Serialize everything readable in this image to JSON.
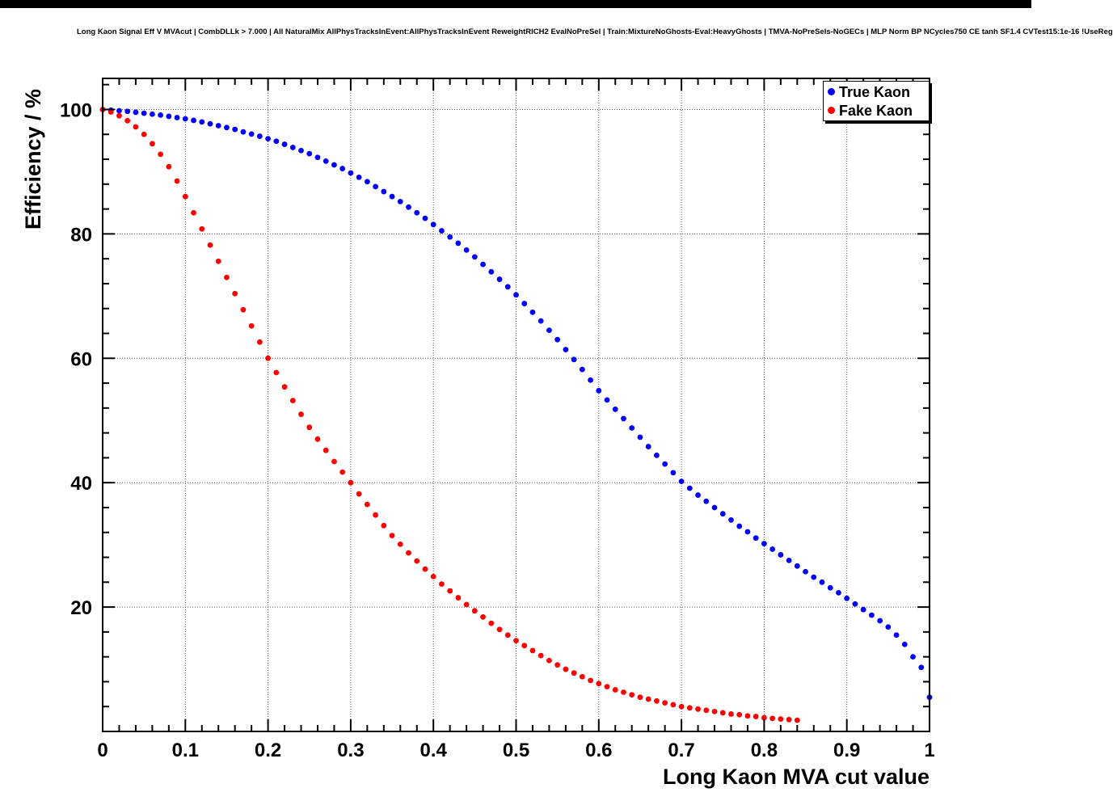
{
  "window": {
    "top_bar_color": "#000000"
  },
  "chart_data": {
    "type": "scatter",
    "title": "Long Kaon Signal Eff V MVAcut | CombDLLk > 7.000 | All NaturalMix AllPhysTracksInEvent:AllPhysTracksInEvent ReweightRICH2 EvalNoPreSel | Train:MixtureNoGhosts-Eval:HeavyGhosts | TMVA-NoPreSels-NoGECs | MLP Norm BP NCycles750 CE tanh SF1.4 CVTest15:1e-16 !UseReg",
    "xlabel": "Long Kaon MVA cut value",
    "ylabel": "Efficiency / %",
    "xlim": [
      0,
      1.0
    ],
    "ylim": [
      0,
      105
    ],
    "grid": true,
    "grid_color": "#555555",
    "x_ticks": [
      0,
      0.1,
      0.2,
      0.3,
      0.4,
      0.5,
      0.6,
      0.7,
      0.8,
      0.9,
      1
    ],
    "x_tick_labels": [
      "0",
      "0.1",
      "0.2",
      "0.3",
      "0.4",
      "0.5",
      "0.6",
      "0.7",
      "0.8",
      "0.9",
      "1"
    ],
    "x_minor_step": 0.02,
    "y_ticks": [
      20,
      40,
      60,
      80,
      100
    ],
    "y_tick_labels": [
      "20",
      "40",
      "60",
      "80",
      "100"
    ],
    "y_minor_step": 4,
    "legend": {
      "position": "top-right",
      "entries": [
        {
          "label": "True Kaon",
          "marker_color": "#0000ff"
        },
        {
          "label": "Fake Kaon",
          "marker_color": "#ff0000"
        }
      ]
    },
    "series": [
      {
        "name": "True Kaon",
        "color": "#0000ff",
        "x_start": 0,
        "x_step": 0.01,
        "values": [
          100.0,
          99.9,
          99.8,
          99.7,
          99.55,
          99.4,
          99.25,
          99.1,
          98.9,
          98.7,
          98.5,
          98.25,
          98.0,
          97.7,
          97.4,
          97.1,
          96.8,
          96.4,
          96.05,
          95.7,
          95.3,
          94.9,
          94.4,
          93.9,
          93.4,
          92.9,
          92.3,
          91.7,
          91.1,
          90.5,
          89.8,
          89.1,
          88.4,
          87.6,
          86.8,
          86.0,
          85.2,
          84.3,
          83.4,
          82.5,
          81.5,
          80.5,
          79.5,
          78.5,
          77.4,
          76.3,
          75.1,
          73.9,
          72.7,
          71.5,
          70.2,
          68.8,
          67.4,
          66.0,
          64.5,
          63.0,
          61.4,
          59.8,
          58.2,
          56.5,
          54.8,
          53.3,
          51.8,
          50.3,
          48.8,
          47.3,
          45.8,
          44.4,
          43.0,
          41.6,
          40.2,
          39.1,
          38.0,
          37.0,
          36.0,
          35.0,
          34.0,
          33.0,
          32.1,
          31.1,
          30.2,
          29.3,
          28.4,
          27.5,
          26.6,
          25.7,
          24.8,
          24.0,
          23.1,
          22.3,
          21.4,
          20.5,
          19.6,
          18.7,
          17.8,
          16.8,
          15.5,
          14.0,
          12.0,
          10.3,
          5.5
        ]
      },
      {
        "name": "Fake Kaon",
        "color": "#ff0000",
        "x_start": 0,
        "x_step": 0.01,
        "values": [
          100.0,
          99.6,
          99.0,
          98.2,
          97.2,
          96.0,
          94.5,
          92.8,
          90.8,
          88.5,
          86.0,
          83.4,
          80.8,
          78.2,
          75.6,
          73.0,
          70.4,
          67.8,
          65.2,
          62.6,
          60.0,
          57.7,
          55.4,
          53.2,
          51.0,
          48.9,
          47.0,
          45.2,
          43.4,
          41.7,
          40.0,
          38.2,
          36.5,
          34.8,
          33.1,
          31.5,
          30.1,
          28.7,
          27.4,
          26.1,
          24.9,
          23.7,
          22.6,
          21.5,
          20.4,
          19.4,
          18.4,
          17.4,
          16.4,
          15.5,
          14.6,
          13.8,
          13.0,
          12.2,
          11.4,
          10.7,
          10.0,
          9.4,
          8.8,
          8.2,
          7.7,
          7.2,
          6.7,
          6.3,
          5.9,
          5.5,
          5.2,
          4.9,
          4.6,
          4.3,
          4.0,
          3.8,
          3.6,
          3.4,
          3.2,
          3.0,
          2.8,
          2.7,
          2.5,
          2.4,
          2.2,
          2.1,
          2.0,
          1.9,
          1.8
        ]
      }
    ]
  }
}
